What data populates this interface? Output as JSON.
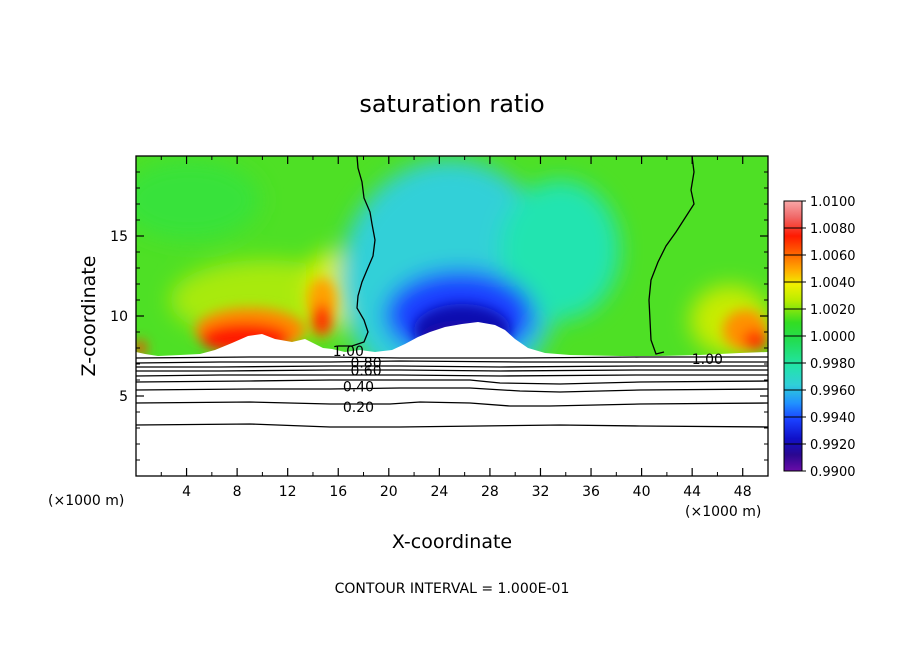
{
  "chart_data": {
    "type": "heatmap",
    "title": "saturation ratio",
    "xlabel": "X-coordinate",
    "ylabel": "Z-coordinate",
    "x_unit_label_left": "(×1000 m)",
    "x_unit_label_right": "(×1000 m)",
    "footer": "CONTOUR INTERVAL = 1.000E-01",
    "xlim": [
      0,
      50
    ],
    "ylim": [
      0,
      20
    ],
    "x_ticks": [
      4,
      8,
      12,
      16,
      20,
      24,
      28,
      32,
      36,
      40,
      44,
      48
    ],
    "x_tick_labels": [
      "4",
      "8",
      "12",
      "16",
      "20",
      "24",
      "28",
      "32",
      "36",
      "40",
      "44",
      "48"
    ],
    "y_ticks": [
      5,
      10,
      15
    ],
    "y_tick_labels": [
      "5",
      "10",
      "15"
    ],
    "colorbar": {
      "ticks": [
        1.01,
        1.008,
        1.006,
        1.004,
        1.002,
        1.0,
        0.998,
        0.996,
        0.994,
        0.992,
        0.99
      ],
      "tick_labels": [
        "1.0100",
        "1.0080",
        "1.0060",
        "1.0040",
        "1.0020",
        "1.0000",
        "0.9980",
        "0.9960",
        "0.9940",
        "0.9920",
        "0.9900"
      ],
      "range": [
        0.99,
        1.01
      ]
    },
    "contour_labels": [
      {
        "text": "1.00",
        "x": 16.8,
        "z": 7.8
      },
      {
        "text": "0.80",
        "x": 18.2,
        "z": 7.1
      },
      {
        "text": "0.60",
        "x": 18.2,
        "z": 6.6
      },
      {
        "text": "0.40",
        "x": 17.6,
        "z": 5.6
      },
      {
        "text": "0.20",
        "x": 17.6,
        "z": 4.3
      },
      {
        "text": "1.00",
        "x": 45.2,
        "z": 7.3
      }
    ],
    "colors": {
      "violet": "#6a0ca8",
      "navy": "#1010a0",
      "blue": "#1a40ff",
      "cyan": "#30d0d8",
      "green": "#33dd22",
      "yellow": "#f0f000",
      "orange": "#ff8800",
      "red": "#ff0000",
      "pink": "#f48080"
    }
  }
}
